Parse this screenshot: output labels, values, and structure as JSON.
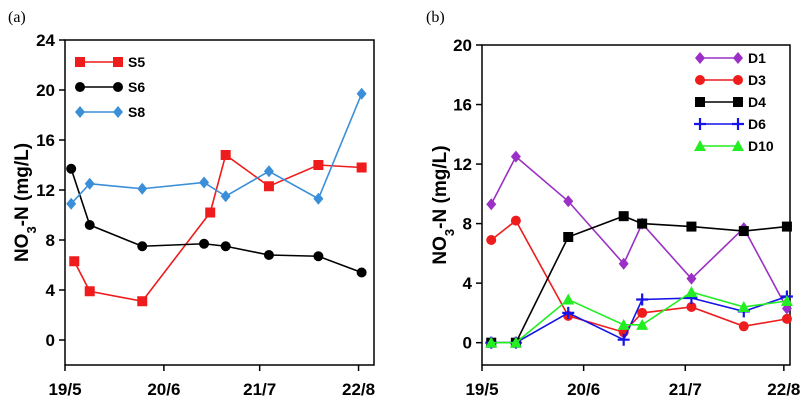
{
  "chart_data": [
    {
      "type": "line",
      "panel_label": "(a)",
      "ylabel_prefix": "NO",
      "ylabel_sub": "3",
      "ylabel_suffix": "-N (mg/L)",
      "ylim": [
        -2,
        24
      ],
      "yticks": [
        "0",
        "4",
        "8",
        "12",
        "16",
        "20",
        "24"
      ],
      "xlim": [
        0,
        100
      ],
      "xticks": [
        {
          "label": "19/5",
          "x": 0
        },
        {
          "label": "20/6",
          "x": 32
        },
        {
          "label": "21/7",
          "x": 63
        },
        {
          "label": "22/8",
          "x": 95
        }
      ],
      "legend_position": "top-left",
      "series": [
        {
          "name": "S5",
          "color": "#ee1c1c",
          "marker": "square",
          "x": [
            3,
            8,
            25,
            47,
            52,
            66,
            82,
            96
          ],
          "y": [
            6.3,
            3.9,
            3.1,
            10.2,
            14.8,
            12.3,
            14.0,
            13.8
          ]
        },
        {
          "name": "S6",
          "color": "#000000",
          "marker": "circle",
          "x": [
            2,
            8,
            25,
            45,
            52,
            66,
            82,
            96
          ],
          "y": [
            13.7,
            9.2,
            7.5,
            7.7,
            7.5,
            6.8,
            6.7,
            5.4
          ]
        },
        {
          "name": "S8",
          "color": "#3a8fd8",
          "marker": "diamond",
          "x": [
            2,
            8,
            25,
            45,
            52,
            66,
            82,
            96
          ],
          "y": [
            10.9,
            12.5,
            12.1,
            12.6,
            11.5,
            13.5,
            11.3,
            19.7
          ]
        }
      ]
    },
    {
      "type": "line",
      "panel_label": "(b)",
      "ylabel_prefix": "NO",
      "ylabel_sub": "3",
      "ylabel_suffix": "-N (mg/L)",
      "ylim": [
        -1.5,
        20
      ],
      "yticks": [
        "0",
        "4",
        "8",
        "12",
        "16",
        "20"
      ],
      "xlim": [
        0,
        100
      ],
      "xticks": [
        {
          "label": "19/5",
          "x": 0
        },
        {
          "label": "20/6",
          "x": 33
        },
        {
          "label": "21/7",
          "x": 66
        },
        {
          "label": "22/8",
          "x": 98
        }
      ],
      "legend_position": "top-right",
      "series": [
        {
          "name": "D1",
          "color": "#9b30c6",
          "marker": "diamond",
          "x": [
            3,
            11,
            28,
            46,
            52,
            68,
            85,
            99
          ],
          "y": [
            9.3,
            12.5,
            9.5,
            5.3,
            8.0,
            4.3,
            7.7,
            2.3
          ]
        },
        {
          "name": "D3",
          "color": "#ee1c1c",
          "marker": "circle",
          "x": [
            3,
            11,
            28,
            46,
            52,
            68,
            85,
            99
          ],
          "y": [
            6.9,
            8.2,
            1.8,
            0.7,
            2.0,
            2.4,
            1.1,
            1.6
          ]
        },
        {
          "name": "D4",
          "color": "#000000",
          "marker": "square",
          "x": [
            3,
            11,
            28,
            46,
            52,
            68,
            85,
            99
          ],
          "y": [
            0.0,
            0.0,
            7.1,
            8.5,
            8.0,
            7.8,
            7.5,
            7.8
          ]
        },
        {
          "name": "D6",
          "color": "#1414e8",
          "marker": "plus",
          "x": [
            3,
            11,
            28,
            46,
            52,
            68,
            85,
            99
          ],
          "y": [
            0.0,
            0.0,
            2.0,
            0.2,
            2.9,
            3.0,
            2.1,
            3.1
          ]
        },
        {
          "name": "D10",
          "color": "#22ee22",
          "marker": "triangle",
          "x": [
            3,
            11,
            28,
            46,
            52,
            68,
            85,
            99
          ],
          "y": [
            0.0,
            0.0,
            2.9,
            1.2,
            1.2,
            3.4,
            2.4,
            2.8
          ]
        }
      ]
    }
  ]
}
